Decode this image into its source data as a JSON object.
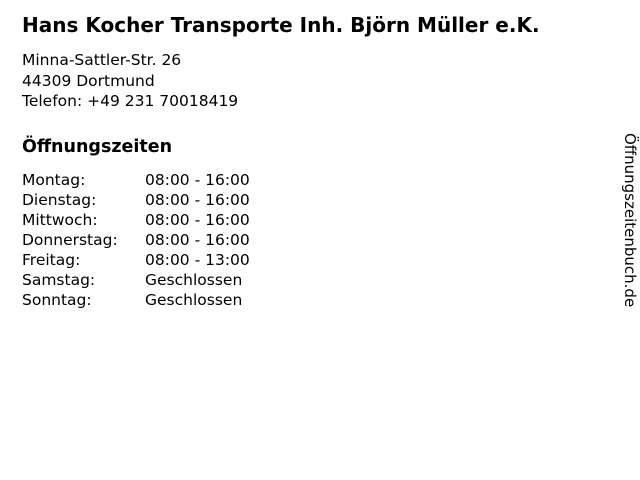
{
  "business": {
    "title": "Hans Kocher Transporte Inh. Björn Müller e.K.",
    "address_line1": "Minna-Sattler-Str. 26",
    "address_line2": "44309 Dortmund",
    "phone_line": "Telefon: +49 231 70018419"
  },
  "hours": {
    "heading": "Öffnungszeiten",
    "rows": [
      {
        "day": "Montag:",
        "time": "08:00 - 16:00"
      },
      {
        "day": "Dienstag:",
        "time": "08:00 - 16:00"
      },
      {
        "day": "Mittwoch:",
        "time": "08:00 - 16:00"
      },
      {
        "day": "Donnerstag:",
        "time": "08:00 - 16:00"
      },
      {
        "day": "Freitag:",
        "time": "08:00 - 13:00"
      },
      {
        "day": "Samstag:",
        "time": "Geschlossen"
      },
      {
        "day": "Sonntag:",
        "time": "Geschlossen"
      }
    ]
  },
  "watermark": {
    "label": "Öffnungszeitenbuch.de"
  },
  "colors": {
    "background": "#ffffff",
    "text": "#000000"
  }
}
